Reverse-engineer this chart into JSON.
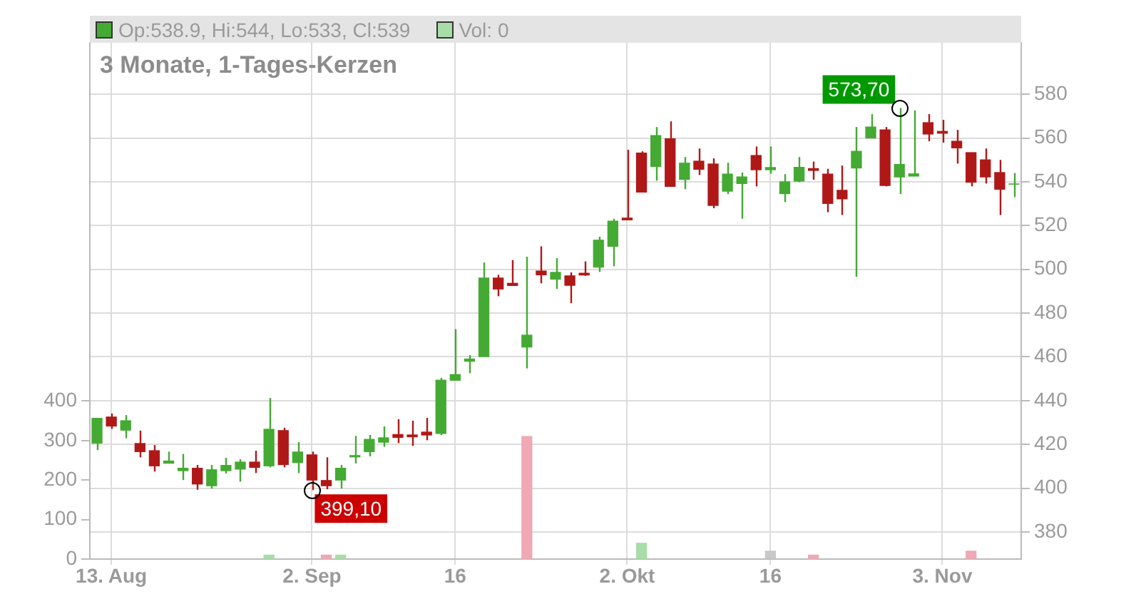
{
  "chart_data": {
    "type": "candlestick",
    "title": "3 Monate, 1-Tages-Kerzen",
    "categories": [
      null,
      "13. Aug",
      null,
      null,
      null,
      null,
      null,
      null,
      null,
      null,
      null,
      null,
      null,
      null,
      null,
      "2. Sep",
      null,
      null,
      null,
      null,
      null,
      null,
      null,
      null,
      null,
      "16",
      null,
      null,
      null,
      null,
      null,
      null,
      null,
      null,
      null,
      null,
      null,
      "2. Okt",
      null,
      null,
      null,
      null,
      null,
      null,
      null,
      null,
      null,
      "16",
      null,
      null,
      null,
      null,
      null,
      null,
      null,
      null,
      null,
      null,
      null,
      "3. Nov",
      null,
      null,
      null,
      null,
      null
    ],
    "series": [
      {
        "name": "Op:538.9, Hi:544, Lo:533, Cl:539",
        "color": "#44aa33",
        "colors": [
          "#44aa33",
          "#b01818",
          "#44aa33",
          "#b01818",
          "#b01818",
          "#44aa33",
          "#44aa33",
          "#b01818",
          "#44aa33",
          "#44aa33",
          "#44aa33",
          "#b01818",
          "#44aa33",
          "#b01818",
          "#44aa33",
          "#b01818",
          "#b01818",
          "#44aa33",
          "#44aa33",
          "#44aa33",
          "#44aa33",
          "#b01818",
          "#b01818",
          "#b01818",
          "#44aa33",
          "#44aa33",
          "#44aa33",
          "#44aa33",
          "#b01818",
          "#b01818",
          "#44aa33",
          "#b01818",
          "#44aa33",
          "#b01818",
          "#b01818",
          "#44aa33",
          "#44aa33",
          "#b01818",
          "#b01818",
          "#44aa33",
          "#b01818",
          "#44aa33",
          "#b01818",
          "#b01818",
          "#44aa33",
          "#44aa33",
          "#b01818",
          "#44aa33",
          "#44aa33",
          "#44aa33",
          "#b01818",
          "#b01818",
          "#b01818",
          "#44aa33",
          "#44aa33",
          "#b01818",
          "#44aa33",
          "#44aa33",
          "#b01818",
          "#b01818",
          "#b01818",
          "#b01818",
          "#b01818",
          "#b01818",
          "#44aa33"
        ],
        "ohlc": [
          [
            420.6,
            432,
            417.4,
            431.9
          ],
          [
            432.5,
            434.1,
            427.1,
            428.4
          ],
          [
            426.5,
            433.4,
            422.8,
            430.8
          ],
          [
            420.4,
            426.3,
            414.1,
            416.7
          ],
          [
            417.1,
            419.7,
            407.6,
            410.2
          ],
          [
            411.4,
            416.7,
            411.3,
            412.4
          ],
          [
            408,
            415.6,
            403.7,
            409.1
          ],
          [
            409.1,
            410.6,
            399.3,
            401.9
          ],
          [
            401.1,
            410.6,
            399.8,
            408.4
          ],
          [
            408,
            413.9,
            406.7,
            410.4
          ],
          [
            408.7,
            413.2,
            403,
            411.9
          ],
          [
            411.9,
            417.1,
            406.9,
            409.5
          ],
          [
            410.2,
            441.2,
            409.5,
            426.9
          ],
          [
            426.3,
            427.6,
            409.5,
            410.8
          ],
          [
            411.7,
            421,
            406.9,
            416.5
          ],
          [
            415.2,
            416.7,
            399.1,
            403.7
          ],
          [
            403.5,
            414.1,
            399.5,
            401.1
          ],
          [
            403.7,
            410.6,
            399.8,
            409.1
          ],
          [
            414.3,
            423.9,
            411.3,
            414.9
          ],
          [
            416.7,
            424.3,
            414.5,
            422.3
          ],
          [
            421,
            428.2,
            418.9,
            423
          ],
          [
            424.5,
            431.5,
            420.6,
            423.2
          ],
          [
            424.3,
            430.8,
            419.3,
            423.5
          ],
          [
            425.6,
            432.1,
            421.9,
            424.3
          ],
          [
            425,
            450.4,
            424.3,
            449.3
          ],
          [
            449.3,
            472.7,
            449.3,
            451.9
          ],
          [
            458,
            460.8,
            452.5,
            459
          ],
          [
            460.1,
            503.1,
            460.1,
            496
          ],
          [
            496,
            497.5,
            487.7,
            491
          ],
          [
            493.6,
            504.2,
            492.6,
            492.6
          ],
          [
            464.5,
            505.7,
            454.7,
            469.9
          ],
          [
            499.2,
            510.5,
            493.6,
            497.5
          ],
          [
            495.5,
            505.1,
            491,
            498.6
          ],
          [
            497,
            498.6,
            484.5,
            492.7
          ],
          [
            498.2,
            503.6,
            497,
            497.4
          ],
          [
            501,
            514.9,
            498.8,
            513.3
          ],
          [
            510.5,
            523.1,
            501.4,
            522
          ],
          [
            523.4,
            554.6,
            522.6,
            522.6
          ],
          [
            553.1,
            553.9,
            535.3,
            535.3
          ],
          [
            547,
            565,
            540.5,
            561.1
          ],
          [
            559.6,
            567.6,
            537.9,
            537.9
          ],
          [
            541.1,
            551.3,
            536.6,
            548.5
          ],
          [
            549.4,
            555.2,
            543.1,
            545.7
          ],
          [
            548.1,
            550.7,
            527.9,
            529.2
          ],
          [
            535.7,
            548.7,
            534.4,
            543.5
          ],
          [
            539.2,
            544.2,
            523.1,
            542.2
          ],
          [
            552,
            556.1,
            537.9,
            545.5
          ],
          [
            545.5,
            556.1,
            543.7,
            546.5
          ],
          [
            534.6,
            543.5,
            530.7,
            540
          ],
          [
            540.3,
            551.3,
            539.8,
            546.6
          ],
          [
            546,
            549.2,
            540.9,
            545.2
          ],
          [
            543.5,
            545.9,
            526.1,
            530.1
          ],
          [
            536.1,
            547.4,
            524.8,
            532.2
          ],
          [
            546.3,
            565,
            496.6,
            553.9
          ],
          [
            560,
            570.9,
            560,
            565
          ],
          [
            563.7,
            565,
            537.9,
            538.3
          ],
          [
            542.2,
            573.7,
            534.4,
            547.9
          ],
          [
            542.6,
            572.6,
            542.6,
            543.6
          ],
          [
            567,
            570.9,
            558.5,
            561.8
          ],
          [
            563,
            568.3,
            557.9,
            562.2
          ],
          [
            558.5,
            563.7,
            548.3,
            555.5
          ],
          [
            553.3,
            553.3,
            537.9,
            539.8
          ],
          [
            550,
            555.2,
            539.2,
            542.2
          ],
          [
            544.2,
            550,
            524.8,
            536.6
          ],
          [
            538.9,
            544,
            533,
            539
          ]
        ]
      },
      {
        "type": "bar",
        "name": "Vol: 0",
        "axis": "y2",
        "color": "#a8dca8",
        "values": [
          null,
          null,
          null,
          null,
          null,
          null,
          null,
          null,
          null,
          null,
          null,
          null,
          10,
          null,
          null,
          null,
          10,
          10,
          null,
          null,
          null,
          null,
          null,
          null,
          null,
          null,
          null,
          null,
          null,
          null,
          310,
          null,
          null,
          null,
          null,
          null,
          null,
          null,
          40,
          null,
          null,
          null,
          null,
          null,
          null,
          null,
          null,
          20,
          null,
          null,
          10,
          null,
          null,
          null,
          null,
          null,
          null,
          null,
          null,
          null,
          null,
          20,
          null,
          null,
          null
        ],
        "colors": [
          null,
          null,
          null,
          null,
          null,
          null,
          null,
          null,
          null,
          null,
          null,
          null,
          "#a8dca8",
          null,
          null,
          null,
          "#f0a8b4",
          "#a8dca8",
          null,
          null,
          null,
          null,
          null,
          null,
          null,
          null,
          null,
          null,
          null,
          null,
          "#f0a8b4",
          null,
          null,
          null,
          null,
          null,
          null,
          null,
          "#a8dca8",
          null,
          null,
          null,
          null,
          null,
          null,
          null,
          null,
          "#c8c8c8",
          null,
          null,
          "#f0a8b4",
          null,
          null,
          null,
          null,
          null,
          null,
          null,
          null,
          null,
          null,
          "#f0a8b4",
          null,
          null,
          null
        ]
      }
    ],
    "ylim": [
      367.6,
      603.5
    ],
    "yticks": [
      380,
      400,
      420,
      440,
      460,
      480,
      500,
      520,
      540,
      560,
      580
    ],
    "y2lim": [
      0,
      1307
    ],
    "y2ticks": [
      0,
      100,
      200,
      300,
      400
    ],
    "annotations": [
      {
        "text": "399,10",
        "x": "2. Sep",
        "y": 399.1
      },
      "573,70"
    ],
    "grid": true,
    "legend": "top left"
  }
}
